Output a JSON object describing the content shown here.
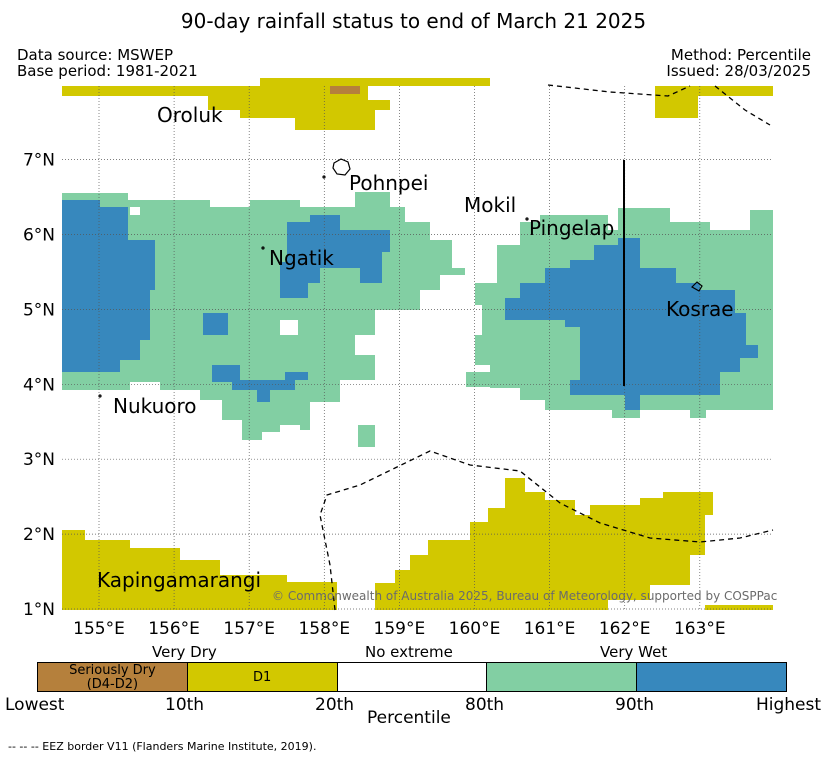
{
  "title": "90-day rainfall status to end of March 21 2025",
  "header": {
    "data_source": "Data source: MSWEP",
    "base_period": "Base period: 1981-2021",
    "method": "Method: Percentile",
    "issued": "Issued: 28/03/2025"
  },
  "map": {
    "lon_ticks": [
      "155°E",
      "156°E",
      "157°E",
      "158°E",
      "159°E",
      "160°E",
      "161°E",
      "162°E",
      "163°E"
    ],
    "lat_ticks": [
      "1°N",
      "2°N",
      "3°N",
      "4°N",
      "5°N",
      "6°N",
      "7°N"
    ],
    "places": [
      "Oroluk",
      "Pohnpei",
      "Mokil",
      "Pingelap",
      "Ngatik",
      "Kosrae",
      "Nukuoro",
      "Kapingamarangi"
    ],
    "copyright": "© Commonwealth of Australia 2025, Bureau of Meteorology, supported by COSPPac",
    "grid": "on"
  },
  "legend": {
    "top_labels": [
      "Very Dry",
      "No extreme",
      "Very Wet"
    ],
    "categories": [
      {
        "label_line1": "Seriously Dry",
        "label_line2": "(D4-D2)",
        "color": "#b5803c"
      },
      {
        "label_line1": "D1",
        "label_line2": "",
        "color": "#d2c800"
      },
      {
        "label_line1": "",
        "label_line2": "",
        "color": "#ffffff"
      },
      {
        "label_line1": "",
        "label_line2": "",
        "color": "#82cfa3"
      },
      {
        "label_line1": "",
        "label_line2": "",
        "color": "#3788bd"
      }
    ],
    "bottom_labels": [
      "Lowest",
      "10th",
      "20th",
      "80th",
      "90th",
      "Highest"
    ],
    "axis_label": "Percentile"
  },
  "footer": {
    "eez_note": "--  --  -- EEZ border V11 (Flanders Marine Institute, 2019)."
  }
}
